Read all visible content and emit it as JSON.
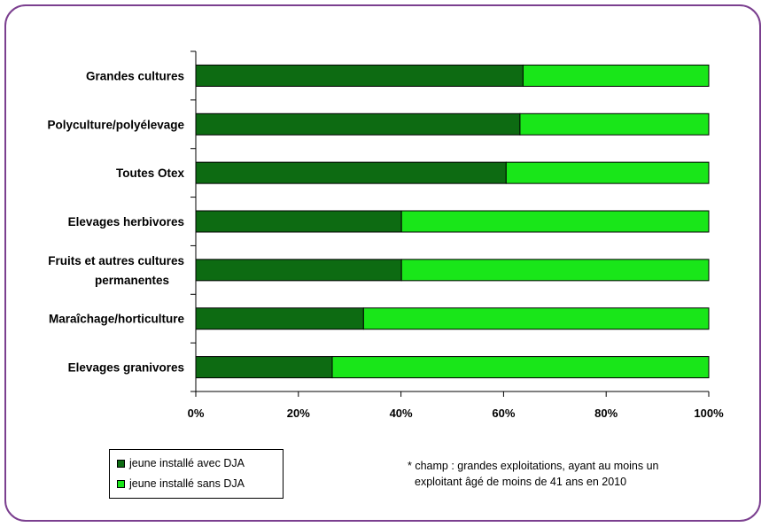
{
  "colors": {
    "frame_border": "#7b3f8f",
    "with_dja": "#0d6b12",
    "without_dja": "#19e619"
  },
  "chart_data": {
    "type": "bar",
    "orientation": "horizontal",
    "stacked": true,
    "categories": [
      [
        "Grandes cultures"
      ],
      [
        "Polyculture/polyélevage"
      ],
      [
        "Toutes Otex"
      ],
      [
        "Elevages herbivores"
      ],
      [
        "Fruits et autres cultures",
        "permanentes"
      ],
      [
        "Maraîchage/horticulture"
      ],
      [
        "Elevages granivores"
      ]
    ],
    "series": [
      {
        "name": "jeune installé avec DJA",
        "values": [
          63.8,
          63.2,
          60.5,
          40.1,
          40.1,
          32.7,
          26.6
        ]
      },
      {
        "name": "jeune installé sans DJA",
        "values": [
          36.2,
          36.8,
          39.5,
          59.9,
          59.9,
          67.3,
          73.4
        ]
      }
    ],
    "xlim": [
      0,
      100
    ],
    "xticks": [
      "0%",
      "20%",
      "40%",
      "60%",
      "80%",
      "100%"
    ],
    "grid": false,
    "legend_position": "bottom-left"
  },
  "footnote": {
    "line1": "* champ : grandes exploitations, ayant au moins un",
    "line2": "exploitant âgé de moins de 41 ans en 2010"
  }
}
